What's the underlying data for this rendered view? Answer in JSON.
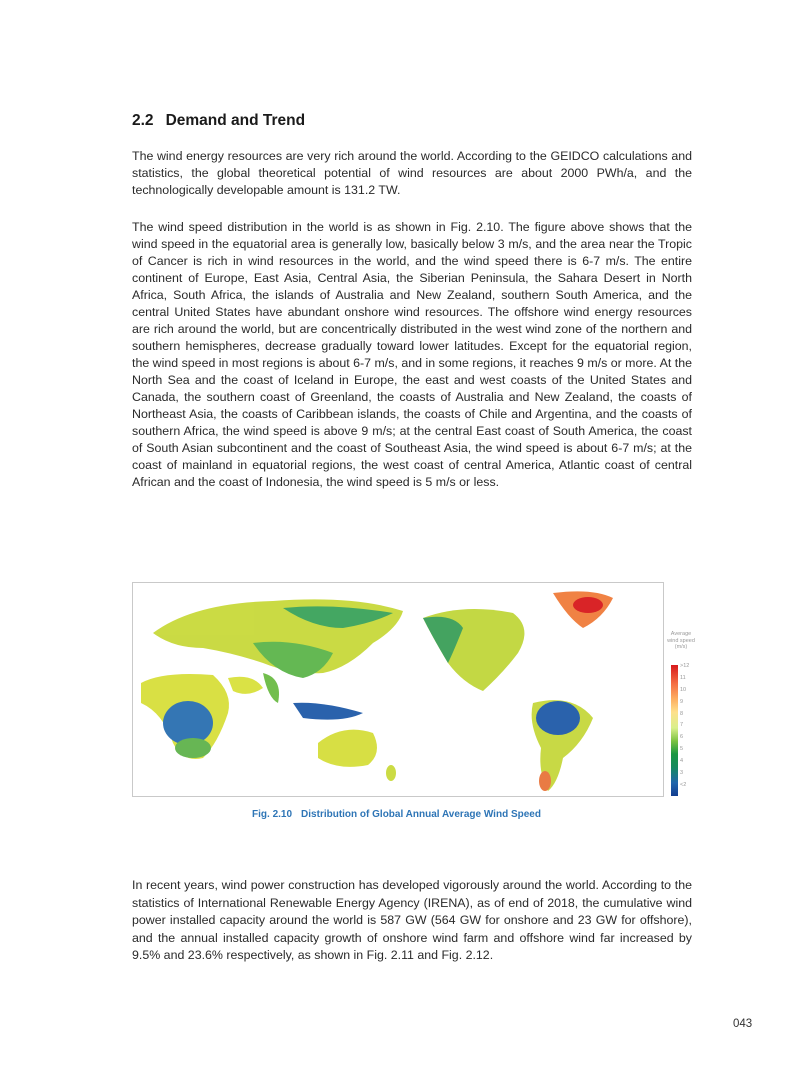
{
  "section": {
    "number": "2.2",
    "title": "Demand and Trend"
  },
  "paragraphs": [
    "The wind energy resources are very rich around the world. According to the GEIDCO calculations and statistics, the global theoretical potential of wind resources are about 2000 PWh/a, and the technologically developable amount is 131.2 TW.",
    "The wind speed distribution in the world is as shown in Fig. 2.10. The figure above shows that the wind speed in the equatorial area is generally low, basically below 3 m/s, and the area near the Tropic of Cancer is rich in wind resources in the world, and the wind speed there is 6-7 m/s. The entire continent of Europe, East Asia, Central Asia, the Siberian Peninsula, the Sahara Desert in North Africa, South Africa, the islands of Australia and New Zealand, southern South America, and the central United States have abundant onshore wind resources. The offshore wind energy resources are rich around the world, but are concentrically distributed in the west wind zone of the northern and southern hemispheres, decrease gradually toward lower latitudes. Except for the equatorial region, the wind speed in most regions is about 6-7 m/s, and in some regions, it reaches 9 m/s or more. At the North Sea and the coast of Iceland in Europe, the east and west coasts of the United States and Canada, the southern coast of Greenland, the coasts of Australia and New Zealand, the coasts of Northeast Asia, the coasts of Caribbean islands, the coasts of Chile and Argentina, and the coasts of southern Africa, the wind speed is above 9 m/s; at the central East coast of South America, the coast of South Asian subcontinent and the coast of Southeast Asia, the wind speed is about 6-7 m/s; at the coast of mainland in equatorial regions, the west coast of central America, Atlantic coast of central African and the coast of Indonesia, the wind speed is 5 m/s or less.",
    "In recent years, wind power construction has developed vigorously around the world. According to the statistics of International Renewable Energy Agency (IRENA), as of end of 2018, the cumulative wind power installed capacity around the world is 587 GW (564 GW for onshore and 23 GW for offshore), and the annual installed capacity growth of onshore wind farm and offshore wind far increased by 9.5% and 23.6% respectively, as shown in Fig. 2.11 and Fig. 2.12."
  ],
  "figure": {
    "label": "Fig. 2.10",
    "title": "Distribution of Global Annual Average Wind Speed",
    "legend_title": "Average wind speed (m/s)",
    "legend_ticks": [
      ">12",
      "11",
      "10",
      "9",
      "8",
      "7",
      "6",
      "5",
      "4",
      "3",
      "<2"
    ],
    "colors": {
      "high": "#d7191c",
      "mid": "#fee08b",
      "low": "#123d8f"
    }
  },
  "page_number": "043"
}
